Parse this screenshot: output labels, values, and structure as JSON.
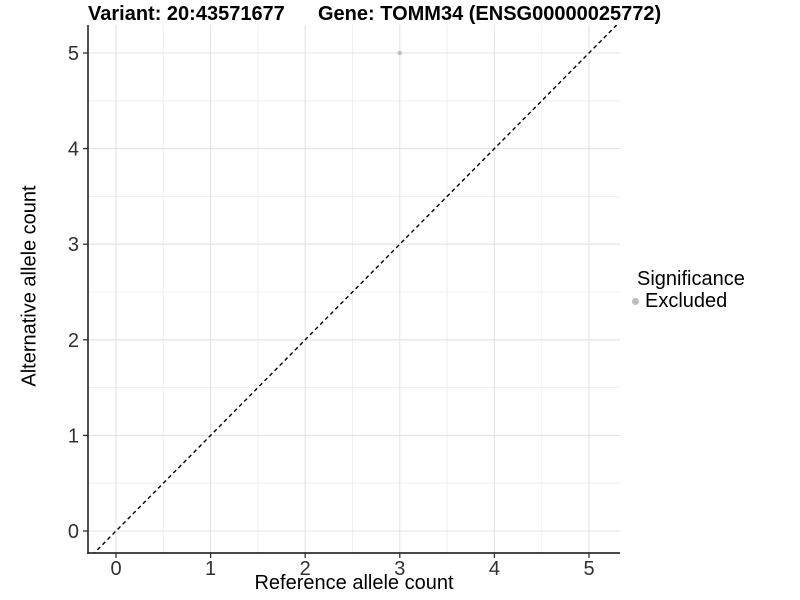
{
  "chart_data": {
    "type": "scatter",
    "title_left": "Variant: 20:43571677",
    "title_right": "Gene: TOMM34 (ENSG00000025772)",
    "xlabel": "Reference allele count",
    "ylabel": "Alternative allele count",
    "xticks": [
      0,
      1,
      2,
      3,
      4,
      5
    ],
    "yticks": [
      0,
      1,
      2,
      3,
      4,
      5
    ],
    "xlim": [
      -0.3,
      5.33
    ],
    "ylim": [
      -0.23,
      5.3
    ],
    "grid": "major+minor",
    "identity_line": {
      "present": true,
      "style": "dashed",
      "color": "#000000"
    },
    "series": [
      {
        "name": "Excluded",
        "color": "#bebebe",
        "points": [
          {
            "x": 3,
            "y": 5
          }
        ]
      }
    ],
    "legend": {
      "title": "Significance",
      "position": "right",
      "entries": [
        {
          "label": "Excluded",
          "color": "#bebebe"
        }
      ]
    },
    "colors": {
      "background": "#ffffff",
      "axis_line": "#2f2f2f",
      "major_grid": "#e3e3e3",
      "minor_grid": "#f0f0f0",
      "tick_label": "#303030",
      "point": "#bebebe"
    }
  }
}
